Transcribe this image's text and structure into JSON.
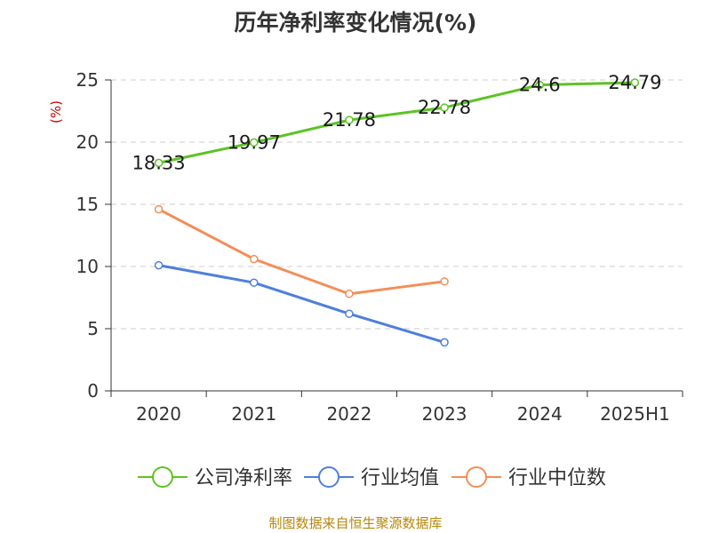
{
  "chart_data": {
    "type": "line",
    "title": "历年净利率变化情况(%)",
    "ylabel": "(%)",
    "xlabel": "",
    "categories": [
      "2020",
      "2021",
      "2022",
      "2023",
      "2024",
      "2025H1"
    ],
    "ylim": [
      0,
      25
    ],
    "yticks": [
      0,
      5,
      10,
      15,
      20,
      25
    ],
    "grid": true,
    "legend_position": "bottom",
    "series": [
      {
        "name": "公司净利率",
        "color": "#5cc323",
        "values": [
          18.33,
          19.97,
          21.78,
          22.78,
          24.6,
          24.79
        ],
        "labels": [
          "18.33",
          "19.97",
          "21.78",
          "22.78",
          "24.6",
          "24.79"
        ],
        "show_labels": true
      },
      {
        "name": "行业均值",
        "color": "#4f7fdc",
        "values": [
          10.1,
          8.7,
          6.2,
          3.9,
          null,
          null
        ],
        "show_labels": false
      },
      {
        "name": "行业中位数",
        "color": "#f28e58",
        "values": [
          14.6,
          10.6,
          7.8,
          8.8,
          null,
          null
        ],
        "show_labels": false
      }
    ]
  },
  "source_note": "制图数据来自恒生聚源数据库"
}
